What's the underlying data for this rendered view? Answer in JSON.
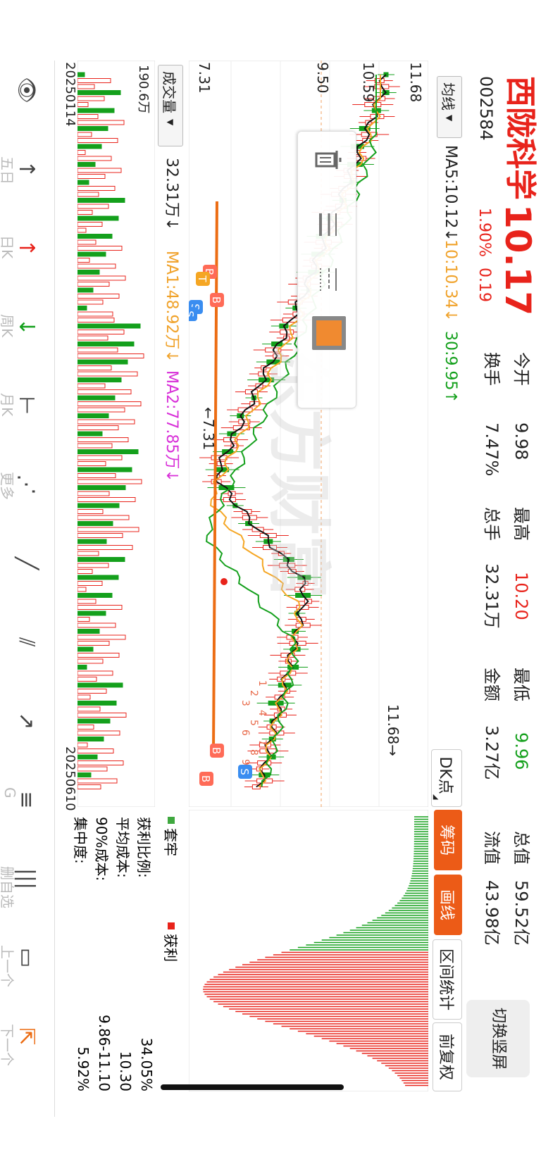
{
  "stock": {
    "name": "西陇科学",
    "code": "002584",
    "price": "10.17",
    "change_pct": "1.90%",
    "change_amt": "0.19",
    "accent_red": "#e8231b",
    "accent_green": "#14a01c"
  },
  "quote": {
    "open_label": "今开",
    "open_value": "9.98",
    "high_label": "最高",
    "high_value": "10.20",
    "low_label": "最低",
    "low_value": "9.96",
    "total_mv_label": "总值",
    "total_mv_value": "59.52亿",
    "turnover_label": "换手",
    "turnover_value": "7.47%",
    "volume_label": "总手",
    "volume_value": "32.31万",
    "amount_label": "金额",
    "amount_value": "3.27亿",
    "float_mv_label": "流值",
    "float_mv_value": "43.98亿"
  },
  "top_button": {
    "label": "切换竖屏"
  },
  "ma_bar": {
    "selector_label": "均线",
    "ma5": "MA5:10.12↓",
    "ma10": "10:10.34↓",
    "ma30": "30:9.95↑"
  },
  "tabs": {
    "dk_label": "DK点",
    "items": [
      "筹码",
      "画线",
      "区间统计",
      "前复权"
    ]
  },
  "price_axis": {
    "ticks": [
      "11.68",
      "10.59",
      "9.50",
      "7.31"
    ],
    "high_marker": "11.68→",
    "low_marker": "←7.31"
  },
  "volume_bar": {
    "selector_label": "成交量",
    "vol": "32.31万↓",
    "ma1": "MA1:48.92万↓",
    "ma2": "MA2:77.85万↓",
    "max_tick": "190.6万"
  },
  "date_axis": {
    "start": "20250114",
    "end": "20250610"
  },
  "chips": {
    "legend_trapped": "套牢",
    "legend_profit": "获利",
    "rows": [
      {
        "label": "获利比例:",
        "value": "34.05%"
      },
      {
        "label": "平均成本:",
        "value": "10.30"
      },
      {
        "label": "90%成本:",
        "value": "9.86-11.10"
      },
      {
        "label": "集中度:",
        "value": "5.92%"
      }
    ]
  },
  "markers": {
    "B": "B",
    "S": "S",
    "T": "T",
    "zi": "自",
    "nums": [
      "1",
      "2",
      "3",
      "4",
      "5",
      "6",
      "7",
      "8",
      "9"
    ]
  },
  "watermark": "东方财富",
  "toolbar": {
    "items": [
      {
        "icon": "eye-icon",
        "label": ""
      },
      {
        "icon": "wuri-icon",
        "label": "五日"
      },
      {
        "icon": "day-k-icon",
        "label": "日K"
      },
      {
        "icon": "week-k-icon",
        "label": "周K"
      },
      {
        "icon": "month-k-icon",
        "label": "月K"
      },
      {
        "icon": "more-icon",
        "label": "更多"
      },
      {
        "icon": "segment-icon",
        "label": ""
      },
      {
        "icon": "parallel-lines-icon",
        "label": ""
      },
      {
        "icon": "ray-icon",
        "label": ""
      },
      {
        "icon": "golden-section-icon",
        "label": "G"
      },
      {
        "icon": "delete-self-icon",
        "label": "删自选"
      },
      {
        "icon": "rectangle-icon",
        "label": "上一个"
      },
      {
        "icon": "export-icon",
        "label": "下一个"
      }
    ]
  },
  "style_popup": {
    "items": [
      "delete-icon",
      "line-width-icon",
      "line-style-icon",
      "color-swatch-icon"
    ],
    "swatch_color": "#f08a30"
  }
}
